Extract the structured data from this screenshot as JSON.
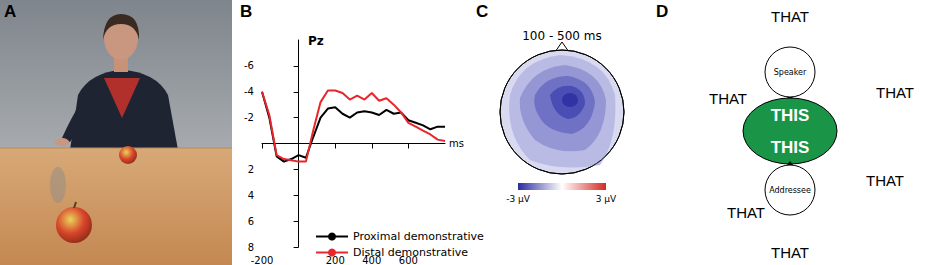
{
  "panel_labels": [
    "A",
    "B",
    "C",
    "D"
  ],
  "chart_data": {
    "type": "line",
    "annotation": "Pz",
    "x_label": "ms",
    "xlim": [
      -200,
      800
    ],
    "xticks": [
      -200,
      200,
      400,
      600
    ],
    "ylim": [
      -8,
      8
    ],
    "yticks": [
      -6,
      -4,
      -2,
      2,
      4,
      6,
      8
    ],
    "grid": false,
    "legend": "bottom",
    "x": [
      -200,
      -160,
      -120,
      -80,
      -40,
      0,
      40,
      80,
      120,
      160,
      200,
      240,
      280,
      320,
      360,
      400,
      440,
      480,
      520,
      560,
      600,
      640,
      680,
      720,
      760,
      800
    ],
    "series": [
      {
        "name": "Proximal demonstrative",
        "color": "#000000",
        "values": [
          -4,
          -2,
          1,
          1.4,
          1.2,
          0.9,
          1.1,
          -0.5,
          -2,
          -2.7,
          -2.8,
          -2.3,
          -2,
          -2.4,
          -2.5,
          -2.4,
          -2.2,
          -2.6,
          -2.3,
          -2.4,
          -1.8,
          -1.6,
          -1.4,
          -1.1,
          -1.3,
          -1.3
        ]
      },
      {
        "name": "Distal demonstrative",
        "color": "#e8262b",
        "values": [
          -4,
          -2.2,
          0.9,
          1.2,
          1.3,
          1.4,
          1.4,
          -1,
          -3.2,
          -4.1,
          -4.1,
          -3.9,
          -3.4,
          -3.7,
          -3.4,
          -3.9,
          -3.3,
          -3.5,
          -3,
          -2.4,
          -1.6,
          -1.3,
          -1,
          -0.7,
          -0.3,
          -0.2
        ]
      }
    ]
  },
  "topography": {
    "title": "100 - 500 ms",
    "colorbar": {
      "range": [
        -3,
        3
      ],
      "ticks": [
        {
          "value": -3,
          "label": "-3 µV"
        },
        {
          "value": 3,
          "label": "3 µV"
        }
      ]
    }
  },
  "diagram": {
    "speaker": "Speaker",
    "addressee": "Addressee",
    "proximal": [
      "THIS",
      "THIS"
    ],
    "distal": [
      "THAT",
      "THAT",
      "THAT",
      "THAT",
      "THAT",
      "THAT"
    ]
  }
}
